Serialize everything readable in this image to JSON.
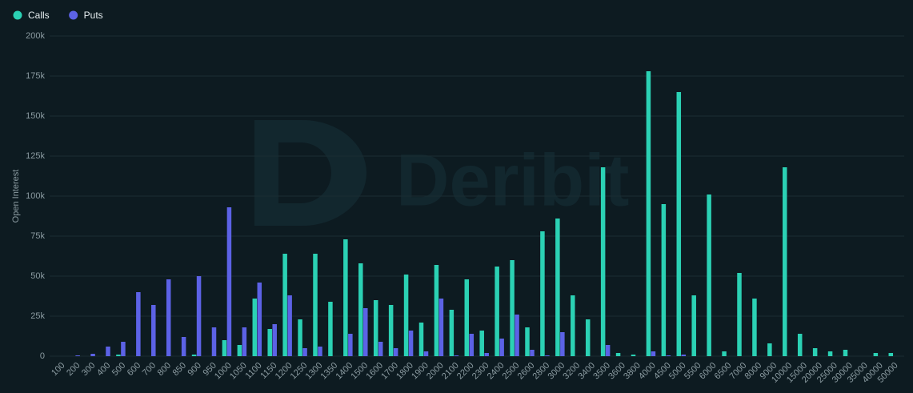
{
  "chart_data": {
    "type": "bar",
    "watermark": "Deribit",
    "ylabel": "Open Interest",
    "categories": [
      "100",
      "200",
      "300",
      "400",
      "500",
      "600",
      "700",
      "800",
      "850",
      "900",
      "950",
      "1000",
      "1050",
      "1100",
      "1150",
      "1200",
      "1250",
      "1300",
      "1350",
      "1400",
      "1500",
      "1600",
      "1700",
      "1800",
      "1900",
      "2000",
      "2100",
      "2200",
      "2300",
      "2400",
      "2500",
      "2600",
      "2800",
      "3000",
      "3200",
      "3400",
      "3500",
      "3600",
      "3800",
      "4000",
      "4500",
      "5000",
      "5500",
      "6000",
      "6500",
      "7000",
      "8000",
      "9000",
      "10000",
      "15000",
      "20000",
      "25000",
      "30000",
      "35000",
      "40000",
      "50000"
    ],
    "series": [
      {
        "name": "Calls",
        "color": "#2bd1b4",
        "values": [
          0,
          0,
          0,
          0,
          1000,
          0,
          0,
          0,
          0,
          1000,
          0,
          10000,
          7000,
          36000,
          17000,
          64000,
          23000,
          64000,
          34000,
          73000,
          58000,
          35000,
          32000,
          51000,
          21000,
          57000,
          29000,
          48000,
          16000,
          56000,
          60000,
          18000,
          78000,
          86000,
          38000,
          23000,
          118000,
          2000,
          1000,
          178000,
          95000,
          165000,
          38000,
          101000,
          3000,
          52000,
          36000,
          8000,
          118000,
          14000,
          5000,
          3000,
          4000,
          0,
          2000,
          2000
        ]
      },
      {
        "name": "Puts",
        "color": "#5c62e6",
        "values": [
          0,
          500,
          1500,
          6000,
          9000,
          40000,
          32000,
          48000,
          12000,
          50000,
          18000,
          93000,
          18000,
          46000,
          20000,
          38000,
          5000,
          6000,
          0,
          14000,
          30000,
          9000,
          5000,
          16000,
          3000,
          36000,
          500,
          14000,
          2000,
          11000,
          26000,
          4000,
          500,
          15000,
          0,
          0,
          7000,
          0,
          0,
          3000,
          500,
          1000,
          0,
          0,
          0,
          0,
          0,
          0,
          0,
          0,
          0,
          0,
          0,
          0,
          0,
          0
        ]
      }
    ],
    "ylim": [
      0,
      200000
    ],
    "yticks": [
      0,
      {
        "value": 25000,
        "label": "25k"
      },
      {
        "value": 50000,
        "label": "50k"
      },
      {
        "value": 75000,
        "label": "75k"
      },
      {
        "value": 100000,
        "label": "100k"
      },
      {
        "value": 125000,
        "label": "125k"
      },
      {
        "value": 150000,
        "label": "150k"
      },
      {
        "value": 175000,
        "label": "175k"
      },
      {
        "value": 200000,
        "label": "200k"
      }
    ],
    "grid": true,
    "legend": "top-left"
  }
}
